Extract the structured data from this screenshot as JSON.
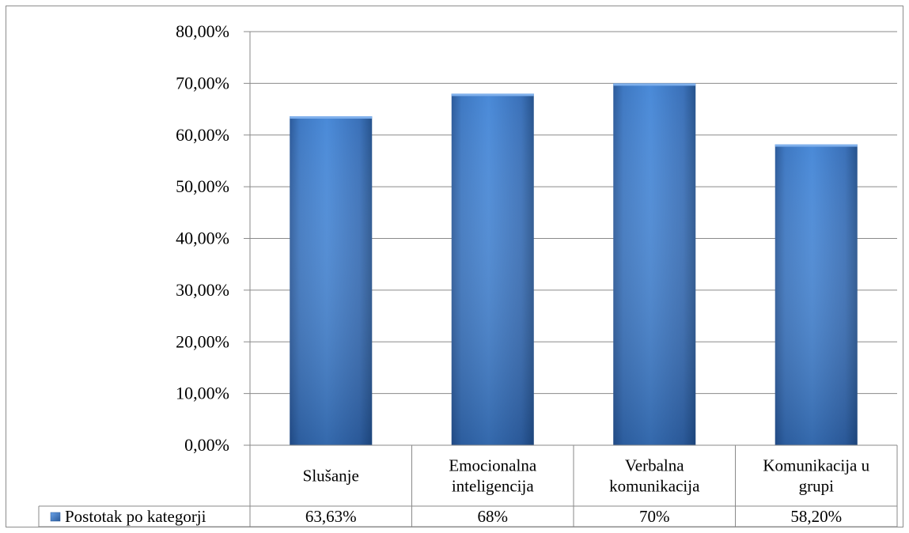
{
  "chart_data": {
    "type": "bar",
    "categories": [
      [
        "Slušanje"
      ],
      [
        "Emocionalna",
        "inteligencija"
      ],
      [
        "Verbalna",
        "komunikacija"
      ],
      [
        "Komunikacija u",
        "grupi"
      ]
    ],
    "series": [
      {
        "name": "Postotak po kategorji",
        "values": [
          63.63,
          68,
          70,
          58.2
        ],
        "labels": [
          "63,63%",
          "68%",
          "70%",
          "58,20%"
        ],
        "color": "#3f7fcc"
      }
    ],
    "ylim": [
      0,
      80
    ],
    "yticks": [
      "0,00%",
      "10,00%",
      "20,00%",
      "30,00%",
      "40,00%",
      "50,00%",
      "60,00%",
      "70,00%",
      "80,00%"
    ],
    "grid": true,
    "legend": "data-table"
  }
}
